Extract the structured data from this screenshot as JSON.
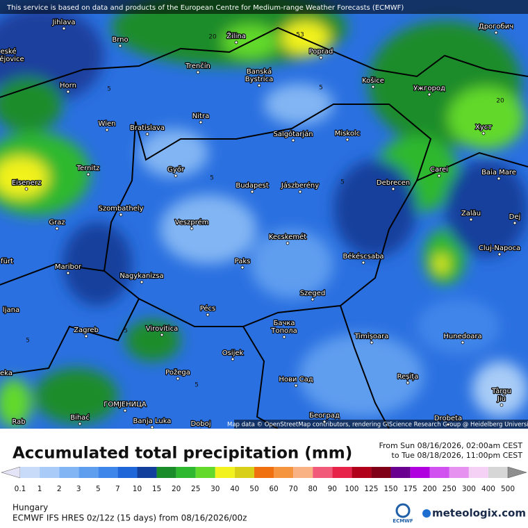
{
  "banner": "This service is based on data and products of the European Centre for Medium-range Weather Forecasts (ECMWF)",
  "map": {
    "cities": [
      "Jihlava",
      "Brno",
      "eské",
      "ějovice",
      "Žilina",
      "Poprad",
      "Дрогобич",
      "Trenčín",
      [
        "Banská",
        "Bystrica"
      ],
      "Košice",
      "Ужгород",
      "Horn",
      "Nitra",
      "Wien",
      "Bratislava",
      "Salgótarján",
      "Miskolc",
      "Хуст",
      "Ternitz",
      "Győr",
      "Carei",
      "Baia Mare",
      "Eisenerz",
      "Budapest",
      "Jászberény",
      "Debrecen",
      "Szombathely",
      "Zalău",
      "Graz",
      "Veszprém",
      "Dej",
      "Kecskemét",
      "Cluj-Napoca",
      "Békéscsaba",
      "Paks",
      "fürt",
      "Maribor",
      "Nagykanizsa",
      "Szeged",
      "ljana",
      "Pécs",
      [
        "Бачка",
        "Топола"
      ],
      "Zagreb",
      "Virovitica",
      "Timișoara",
      "Hunedoara",
      "Osijek",
      "eka",
      "Požega",
      "Нови Сад",
      "Reșița",
      [
        "Târgu",
        "Jiu"
      ],
      "ГОМЈЕНИЦА",
      "Bihać",
      "Banja Luka",
      "Rab",
      "Београд",
      "Doboj",
      "Drobeta"
    ],
    "contour_labels": [
      "5",
      "5",
      "5",
      "5",
      "5",
      "5",
      "20",
      "20",
      "53",
      "5"
    ],
    "attribution": "Map data © OpenStreetMap contributors, rendering GIScience Research Group @ Heidelberg University"
  },
  "header": {
    "title": "Accumulated total precipitation (mm)",
    "from": "From Sun 08/16/2026, 02:00am CEST",
    "to": "to Tue 08/18/2026, 11:00pm CEST"
  },
  "legend": {
    "labels": [
      "0.1",
      "1",
      "2",
      "3",
      "5",
      "7",
      "10",
      "15",
      "20",
      "25",
      "30",
      "40",
      "50",
      "60",
      "70",
      "80",
      "90",
      "100",
      "125",
      "150",
      "175",
      "200",
      "250",
      "300",
      "400",
      "500"
    ],
    "colors": [
      "#e4e4f6",
      "#c8dcfa",
      "#a8ccf7",
      "#82b5f3",
      "#5f9def",
      "#3f86ea",
      "#1f67d9",
      "#133f9c",
      "#1a8c2a",
      "#2eb82f",
      "#62d92b",
      "#f2f21f",
      "#d8d018",
      "#f07010",
      "#f59540",
      "#f8b283",
      "#f25a7a",
      "#e8234a",
      "#b0001a",
      "#800018",
      "#6a0090",
      "#b000e0",
      "#d050f0",
      "#e592f0",
      "#f5d2f5",
      "#d6d6d6",
      "#8e8e8e"
    ]
  },
  "footer": {
    "region": "Hungary",
    "model": "ECMWF IFS HRES 0z/12z (15 days) from 08/16/2026/00z",
    "logo_ecmwf": "ECMWF",
    "logo_brand": "meteologix.com"
  }
}
